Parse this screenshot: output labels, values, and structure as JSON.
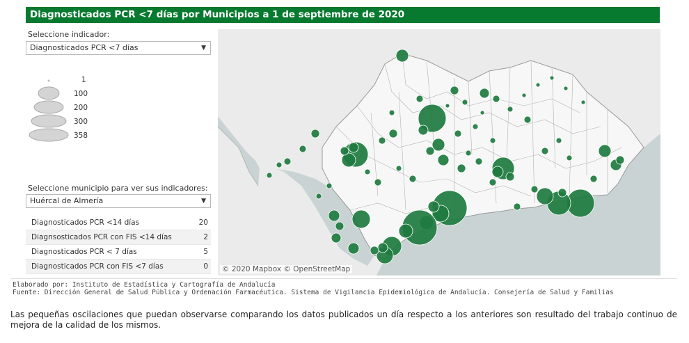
{
  "title": "Diagnosticados PCR <7 días por Municipios a 1 de septiembre de 2020",
  "indicator": {
    "label": "Seleccione indicador:",
    "selected": "Diagnosticados PCR <7 días"
  },
  "legend": {
    "values": [
      "1",
      "100",
      "200",
      "300",
      "358"
    ]
  },
  "municipio": {
    "label": "Seleccione municipio para ver sus indicadores:",
    "selected": "Huércal de Almería"
  },
  "indicators_table": [
    {
      "name": "Diagnosticados PCR <14 días",
      "value": "20"
    },
    {
      "name": "Diagnsosticados PCR con FIS <14 días",
      "value": "2"
    },
    {
      "name": "Diagnosticados PCR < 7 días",
      "value": "5"
    },
    {
      "name": "Diagnosticados PCR con FIS <7 días",
      "value": "0"
    }
  ],
  "map": {
    "attribution": "© 2020 Mapbox © OpenStreetMap",
    "land_color": "#e9e9e9",
    "sea_color": "#c9d3d3",
    "bubble_color": "#1e7b3f"
  },
  "footer": {
    "elaborado": "Elaborado por: Instituto de Estadística y Cartografía de Andalucía",
    "fuente": "Fuente: Dirección General de Salud Pública y Ordenación Farmacéutica. Sistema de Vigilancia Epidemiológica de Andalucía. Consejería de Salud y Familias"
  },
  "note": "Las pequeñas oscilaciones que puedan observarse comparando los datos publicados un día respecto a los anteriores son resultado del trabajo continuo de mejora de la calidad de los mismos."
}
